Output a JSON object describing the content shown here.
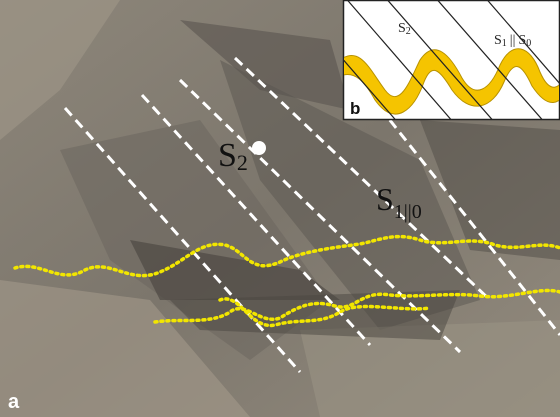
{
  "panel_a": {
    "label": "a",
    "annotations": [
      {
        "main": "S",
        "sub": "2"
      },
      {
        "main": "S",
        "sub": "1||0"
      }
    ]
  },
  "panel_b": {
    "label": "b",
    "s2": {
      "main": "S",
      "sub": "2"
    },
    "s1": {
      "main": "S",
      "sub": "1"
    },
    "separator": "||",
    "s0": {
      "main": "S",
      "sub": "0"
    }
  }
}
